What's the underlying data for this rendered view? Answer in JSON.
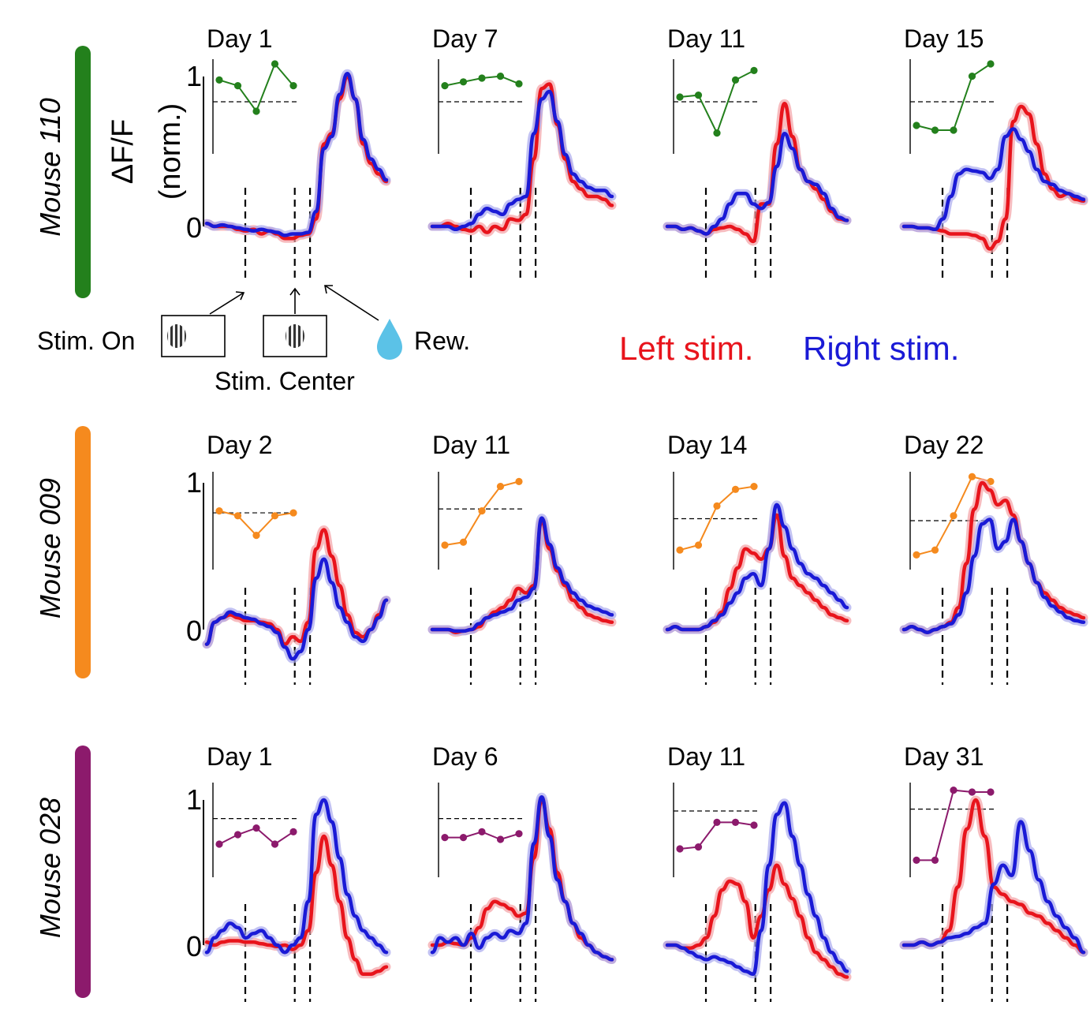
{
  "figure": {
    "ylabel_line1": "ΔF/F",
    "ylabel_line2": "(norm.)",
    "ytick_top": "1",
    "ytick_bottom": "0",
    "events": {
      "stim_on": "Stim. On",
      "stim_center": "Stim. Center",
      "reward": "Rew."
    },
    "legend": {
      "left": "Left stim.",
      "right": "Right stim."
    },
    "colors": {
      "left": "#e8141c",
      "right": "#1a1ad6",
      "left_band": "#f4a0a4",
      "right_band": "#a8a8ee",
      "water": "#5bc2e7",
      "mouse_110": "#23801c",
      "mouse_009": "#f58a1e",
      "mouse_028": "#8c1a6c"
    }
  },
  "chart_data": {
    "type": "line",
    "description": "Normalized ΔF/F responses (0 to 1) to left vs right stimuli across training days for three mice; inset shows a 5-point learning curve per session relative to a dashed reference line.",
    "ylim": [
      0,
      1
    ],
    "series_names": [
      "Left stim.",
      "Right stim."
    ],
    "mice": [
      {
        "name": "Mouse 110",
        "color": "#23801c",
        "sessions": [
          {
            "day": "Day 1",
            "inset": [
              0.78,
              0.72,
              0.45,
              0.95,
              0.72
            ],
            "inset_ref": 0.55,
            "left": [
              0.02,
              0.0,
              0.0,
              0.0,
              -0.02,
              -0.03,
              -0.02,
              -0.05,
              -0.03,
              -0.05,
              -0.08,
              -0.08,
              -0.06,
              -0.05,
              0.05,
              0.55,
              0.62,
              0.85,
              1.0,
              0.85,
              0.55,
              0.42,
              0.35,
              0.3
            ],
            "right": [
              0.02,
              0.0,
              0.01,
              0.0,
              -0.01,
              -0.02,
              -0.03,
              -0.02,
              -0.03,
              -0.04,
              -0.06,
              -0.05,
              -0.05,
              -0.04,
              0.1,
              0.52,
              0.6,
              0.88,
              1.02,
              0.85,
              0.58,
              0.45,
              0.38,
              0.31
            ]
          },
          {
            "day": "Day 7",
            "inset": [
              0.72,
              0.76,
              0.8,
              0.82,
              0.74
            ],
            "inset_ref": 0.55,
            "left": [
              0.0,
              0.0,
              0.02,
              0.0,
              -0.02,
              -0.03,
              0.0,
              -0.04,
              0.0,
              -0.02,
              0.05,
              0.04,
              0.08,
              0.45,
              0.92,
              0.95,
              0.68,
              0.45,
              0.3,
              0.25,
              0.2,
              0.2,
              0.18,
              0.14
            ],
            "right": [
              0.0,
              0.0,
              0.0,
              -0.02,
              0.0,
              0.02,
              0.08,
              0.12,
              0.1,
              0.08,
              0.15,
              0.18,
              0.2,
              0.62,
              0.85,
              0.9,
              0.7,
              0.48,
              0.35,
              0.3,
              0.26,
              0.24,
              0.24,
              0.2
            ]
          },
          {
            "day": "Day 11",
            "inset": [
              0.6,
              0.62,
              0.22,
              0.78,
              0.88
            ],
            "inset_ref": 0.55,
            "left": [
              0.0,
              0.0,
              -0.02,
              -0.01,
              -0.03,
              -0.05,
              -0.02,
              -0.01,
              0.0,
              -0.02,
              -0.05,
              -0.1,
              0.15,
              0.15,
              0.55,
              0.82,
              0.6,
              0.38,
              0.3,
              0.25,
              0.18,
              0.1,
              0.05,
              0.04
            ],
            "right": [
              0.0,
              0.0,
              -0.02,
              -0.01,
              -0.03,
              -0.05,
              0.0,
              0.05,
              0.15,
              0.22,
              0.22,
              0.15,
              0.12,
              0.16,
              0.4,
              0.62,
              0.52,
              0.38,
              0.3,
              0.28,
              0.22,
              0.12,
              0.06,
              0.04
            ]
          },
          {
            "day": "Day 15",
            "inset": [
              0.3,
              0.25,
              0.25,
              0.82,
              0.95
            ],
            "inset_ref": 0.55,
            "left": [
              0.0,
              0.0,
              -0.01,
              -0.01,
              -0.02,
              -0.03,
              -0.05,
              -0.05,
              -0.05,
              -0.06,
              -0.08,
              -0.15,
              -0.1,
              0.05,
              0.7,
              0.8,
              0.75,
              0.55,
              0.35,
              0.25,
              0.2,
              0.22,
              0.18,
              0.17
            ],
            "right": [
              0.0,
              0.0,
              -0.01,
              -0.01,
              -0.02,
              0.05,
              0.2,
              0.35,
              0.38,
              0.37,
              0.36,
              0.32,
              0.38,
              0.6,
              0.65,
              0.58,
              0.5,
              0.38,
              0.3,
              0.28,
              0.24,
              0.22,
              0.2,
              0.18
            ]
          }
        ]
      },
      {
        "name": "Mouse 009",
        "color": "#f58a1e",
        "sessions": [
          {
            "day": "Day 2",
            "inset": [
              0.6,
              0.55,
              0.35,
              0.55,
              0.58
            ],
            "inset_ref": 0.58,
            "left": [
              -0.1,
              0.05,
              0.08,
              0.1,
              0.08,
              0.06,
              0.06,
              0.05,
              0.04,
              0.0,
              -0.1,
              -0.05,
              -0.08,
              0.05,
              0.55,
              0.68,
              0.5,
              0.3,
              0.1,
              -0.02,
              -0.05,
              0.0,
              0.1,
              0.2
            ],
            "right": [
              -0.1,
              0.05,
              0.08,
              0.12,
              0.1,
              0.08,
              0.07,
              0.04,
              0.02,
              -0.02,
              -0.12,
              -0.2,
              -0.15,
              0.0,
              0.35,
              0.48,
              0.32,
              0.15,
              0.05,
              -0.05,
              -0.08,
              0.0,
              0.08,
              0.2
            ]
          },
          {
            "day": "Day 11",
            "inset": [
              0.25,
              0.28,
              0.6,
              0.85,
              0.9
            ],
            "inset_ref": 0.62,
            "left": [
              0.0,
              0.0,
              0.0,
              -0.02,
              -0.01,
              0.0,
              0.02,
              0.08,
              0.12,
              0.15,
              0.2,
              0.28,
              0.25,
              0.3,
              0.74,
              0.55,
              0.4,
              0.3,
              0.2,
              0.15,
              0.1,
              0.08,
              0.06,
              0.05
            ],
            "right": [
              0.0,
              0.0,
              0.0,
              -0.01,
              -0.01,
              0.0,
              0.04,
              0.08,
              0.1,
              0.12,
              0.14,
              0.2,
              0.22,
              0.28,
              0.76,
              0.58,
              0.42,
              0.32,
              0.25,
              0.2,
              0.16,
              0.14,
              0.12,
              0.1
            ]
          },
          {
            "day": "Day 14",
            "inset": [
              0.2,
              0.25,
              0.65,
              0.82,
              0.85
            ],
            "inset_ref": 0.52,
            "left": [
              0.0,
              0.02,
              0.0,
              0.0,
              0.0,
              0.02,
              0.05,
              0.12,
              0.28,
              0.42,
              0.55,
              0.52,
              0.48,
              0.55,
              0.78,
              0.5,
              0.35,
              0.3,
              0.25,
              0.2,
              0.15,
              0.1,
              0.08,
              0.06
            ],
            "right": [
              0.0,
              0.02,
              0.0,
              0.0,
              0.0,
              0.02,
              0.06,
              0.1,
              0.18,
              0.25,
              0.35,
              0.38,
              0.3,
              0.55,
              0.85,
              0.7,
              0.55,
              0.45,
              0.38,
              0.35,
              0.3,
              0.25,
              0.2,
              0.15
            ],
            "ymax": 0.9
          },
          {
            "day": "Day 22",
            "inset": [
              0.15,
              0.2,
              0.55,
              0.95,
              0.9
            ],
            "inset_ref": 0.5,
            "left": [
              0.0,
              0.02,
              0.0,
              -0.02,
              0.0,
              0.02,
              0.05,
              0.15,
              0.45,
              0.82,
              1.0,
              0.95,
              0.85,
              0.88,
              0.78,
              0.6,
              0.45,
              0.32,
              0.25,
              0.2,
              0.15,
              0.12,
              0.1,
              0.08
            ],
            "right": [
              0.0,
              0.02,
              0.0,
              -0.02,
              0.0,
              0.02,
              0.04,
              0.1,
              0.25,
              0.5,
              0.72,
              0.75,
              0.55,
              0.6,
              0.75,
              0.6,
              0.45,
              0.32,
              0.22,
              0.16,
              0.12,
              0.08,
              0.06,
              0.05
            ],
            "ymax": 1.1
          }
        ]
      },
      {
        "name": "Mouse 028",
        "color": "#8c1a6c",
        "sessions": [
          {
            "day": "Day 1",
            "inset": [
              0.35,
              0.45,
              0.52,
              0.35,
              0.48
            ],
            "inset_ref": 0.62,
            "left": [
              0.02,
              0.0,
              0.02,
              0.03,
              0.03,
              0.02,
              0.02,
              0.01,
              0.0,
              -0.01,
              0.0,
              -0.03,
              0.0,
              0.1,
              0.5,
              0.75,
              0.55,
              0.3,
              0.05,
              -0.1,
              -0.2,
              -0.2,
              -0.18,
              -0.15
            ],
            "right": [
              -0.05,
              0.05,
              0.1,
              0.15,
              0.12,
              0.05,
              0.08,
              0.1,
              0.05,
              0.0,
              -0.05,
              0.0,
              0.05,
              0.3,
              0.9,
              1.0,
              0.85,
              0.6,
              0.35,
              0.2,
              0.1,
              0.05,
              0.0,
              -0.05
            ],
            "ymin": -0.25
          },
          {
            "day": "Day 6",
            "inset": [
              0.42,
              0.42,
              0.48,
              0.4,
              0.46
            ],
            "inset_ref": 0.62,
            "left": [
              0.0,
              0.0,
              0.02,
              0.01,
              0.0,
              0.05,
              0.12,
              0.25,
              0.3,
              0.28,
              0.25,
              0.2,
              0.22,
              0.6,
              1.0,
              0.8,
              0.5,
              0.3,
              0.15,
              0.05,
              0.0,
              -0.05,
              -0.08,
              -0.1
            ],
            "right": [
              -0.05,
              0.05,
              0.02,
              0.05,
              0.0,
              0.08,
              -0.02,
              0.05,
              0.08,
              0.05,
              0.1,
              0.08,
              0.15,
              0.7,
              1.02,
              0.75,
              0.45,
              0.3,
              0.15,
              0.08,
              0.0,
              -0.05,
              -0.08,
              -0.1
            ],
            "ymin": -0.15
          },
          {
            "day": "Day 11",
            "inset": [
              0.3,
              0.32,
              0.58,
              0.58,
              0.55
            ],
            "inset_ref": 0.7,
            "left": [
              0.0,
              0.0,
              -0.02,
              -0.02,
              0.0,
              0.05,
              0.2,
              0.38,
              0.44,
              0.42,
              0.3,
              0.05,
              0.2,
              0.38,
              0.55,
              0.42,
              0.32,
              0.2,
              0.05,
              -0.05,
              -0.1,
              -0.15,
              -0.2,
              -0.22
            ],
            "right": [
              0.0,
              0.0,
              -0.02,
              -0.05,
              -0.08,
              -0.1,
              -0.08,
              -0.1,
              -0.12,
              -0.15,
              -0.18,
              -0.2,
              0.1,
              0.55,
              0.9,
              0.98,
              0.75,
              0.55,
              0.35,
              0.2,
              0.05,
              -0.05,
              -0.12,
              -0.18
            ],
            "ymin": -0.25
          },
          {
            "day": "Day 31",
            "inset": [
              0.18,
              0.18,
              0.92,
              0.9,
              0.9
            ],
            "inset_ref": 0.72,
            "left": [
              0.0,
              0.0,
              0.02,
              0.0,
              0.02,
              0.1,
              0.4,
              0.8,
              1.0,
              0.75,
              0.4,
              0.35,
              0.3,
              0.28,
              0.22,
              0.2,
              0.15,
              0.1,
              0.05,
              0.0,
              -0.05
            ],
            "right": [
              0.0,
              0.0,
              0.02,
              0.0,
              0.02,
              0.05,
              0.06,
              0.08,
              0.12,
              0.15,
              0.42,
              0.55,
              0.48,
              0.85,
              0.65,
              0.45,
              0.3,
              0.2,
              0.12,
              0.05,
              -0.05
            ],
            "ymin": -0.05
          }
        ]
      }
    ]
  }
}
